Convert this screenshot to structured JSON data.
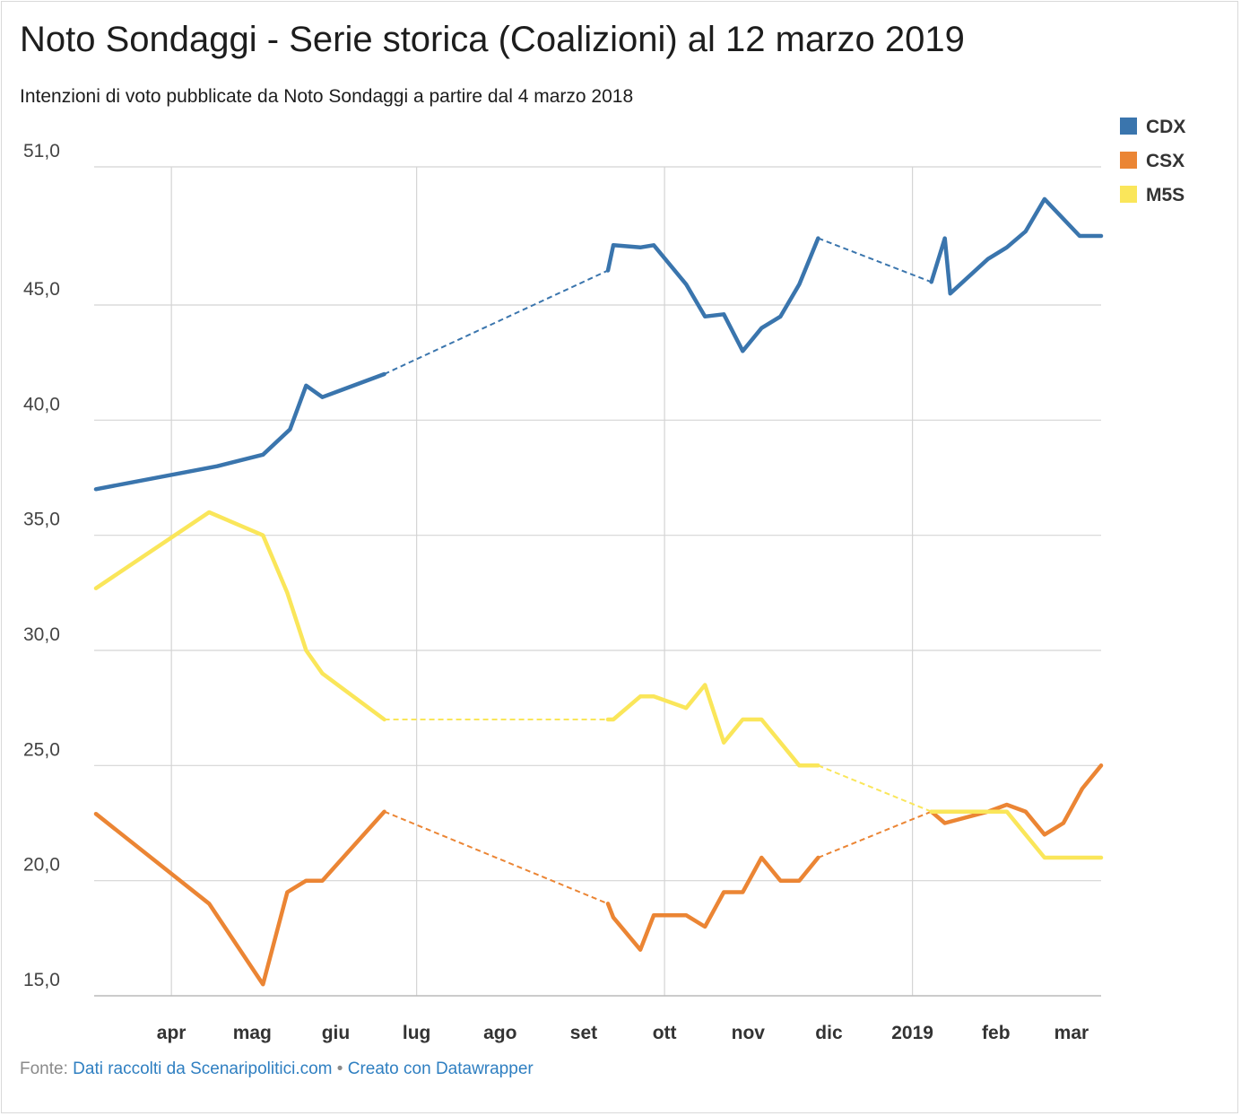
{
  "title": "Noto Sondaggi - Serie storica (Coalizioni) al 12 marzo 2019",
  "subtitle": "Intenzioni di voto pubblicate da Noto Sondaggi a partire dal 4 marzo 2018",
  "footer": {
    "prefix": "Fonte:",
    "source": "Dati raccolti da Scenaripolitici.com",
    "separator": "•",
    "credit": "Creato con Datawrapper"
  },
  "chart_data": {
    "type": "line",
    "title": "Noto Sondaggi - Serie storica (Coalizioni) al 12 marzo 2019",
    "ylim": [
      15,
      51
    ],
    "y_ticks": [
      15,
      20,
      25,
      30,
      35,
      40,
      45,
      51
    ],
    "y_tick_labels": [
      "15,0",
      "20,0",
      "25,0",
      "30,0",
      "35,0",
      "40,0",
      "45,0",
      "51,0"
    ],
    "x_range": [
      "2018-03-04",
      "2019-03-12"
    ],
    "x_ticks": [
      {
        "date": "2018-04-01",
        "label": "apr"
      },
      {
        "date": "2018-05-01",
        "label": "mag"
      },
      {
        "date": "2018-06-01",
        "label": "giu"
      },
      {
        "date": "2018-07-01",
        "label": "lug"
      },
      {
        "date": "2018-08-01",
        "label": "ago"
      },
      {
        "date": "2018-09-01",
        "label": "set"
      },
      {
        "date": "2018-10-01",
        "label": "ott"
      },
      {
        "date": "2018-11-01",
        "label": "nov"
      },
      {
        "date": "2018-12-01",
        "label": "dic"
      },
      {
        "date": "2019-01-01",
        "label": "2019"
      },
      {
        "date": "2019-02-01",
        "label": "feb"
      },
      {
        "date": "2019-03-01",
        "label": "mar"
      }
    ],
    "gridlines": true,
    "legend_position": "top-right",
    "gaps_style": "dashed",
    "series": [
      {
        "name": "CDX",
        "color": "#3a75ad",
        "segments": [
          [
            [
              "2018-03-04",
              37.0
            ],
            [
              "2018-04-18",
              38.0
            ],
            [
              "2018-05-05",
              38.5
            ],
            [
              "2018-05-15",
              39.6
            ],
            [
              "2018-05-21",
              41.5
            ],
            [
              "2018-05-27",
              41.0
            ],
            [
              "2018-06-19",
              42.0
            ]
          ],
          [
            [
              "2018-09-10",
              46.5
            ],
            [
              "2018-09-12",
              47.6
            ],
            [
              "2018-09-22",
              47.5
            ],
            [
              "2018-09-27",
              47.6
            ],
            [
              "2018-10-09",
              45.9
            ],
            [
              "2018-10-16",
              44.5
            ],
            [
              "2018-10-23",
              44.6
            ],
            [
              "2018-10-30",
              43.0
            ],
            [
              "2018-11-06",
              44.0
            ],
            [
              "2018-11-13",
              44.5
            ],
            [
              "2018-11-20",
              45.9
            ],
            [
              "2018-11-27",
              47.9
            ]
          ],
          [
            [
              "2019-01-08",
              46.0
            ],
            [
              "2019-01-13",
              47.9
            ],
            [
              "2019-01-15",
              45.5
            ],
            [
              "2019-01-29",
              47.0
            ],
            [
              "2019-02-05",
              47.5
            ],
            [
              "2019-02-12",
              48.2
            ],
            [
              "2019-02-19",
              49.6
            ],
            [
              "2019-03-04",
              48.0
            ],
            [
              "2019-03-12",
              48.0
            ]
          ]
        ]
      },
      {
        "name": "CSX",
        "color": "#eb8534",
        "segments": [
          [
            [
              "2018-03-04",
              22.9
            ],
            [
              "2018-04-15",
              19.0
            ],
            [
              "2018-05-05",
              15.5
            ],
            [
              "2018-05-14",
              19.5
            ],
            [
              "2018-05-21",
              20.0
            ],
            [
              "2018-05-27",
              20.0
            ],
            [
              "2018-06-19",
              23.0
            ]
          ],
          [
            [
              "2018-09-10",
              19.0
            ],
            [
              "2018-09-12",
              18.4
            ],
            [
              "2018-09-22",
              17.0
            ],
            [
              "2018-09-27",
              18.5
            ],
            [
              "2018-10-09",
              18.5
            ],
            [
              "2018-10-16",
              18.0
            ],
            [
              "2018-10-23",
              19.5
            ],
            [
              "2018-10-30",
              19.5
            ],
            [
              "2018-11-06",
              21.0
            ],
            [
              "2018-11-13",
              20.0
            ],
            [
              "2018-11-20",
              20.0
            ],
            [
              "2018-11-27",
              21.0
            ]
          ],
          [
            [
              "2019-01-08",
              23.0
            ],
            [
              "2019-01-13",
              22.5
            ],
            [
              "2019-01-29",
              23.0
            ],
            [
              "2019-02-05",
              23.3
            ],
            [
              "2019-02-12",
              23.0
            ],
            [
              "2019-02-19",
              22.0
            ],
            [
              "2019-02-26",
              22.5
            ],
            [
              "2019-03-05",
              24.0
            ],
            [
              "2019-03-12",
              25.0
            ]
          ]
        ]
      },
      {
        "name": "M5S",
        "color": "#fae65a",
        "segments": [
          [
            [
              "2018-03-04",
              32.7
            ],
            [
              "2018-04-15",
              36.0
            ],
            [
              "2018-05-05",
              35.0
            ],
            [
              "2018-05-14",
              32.5
            ],
            [
              "2018-05-21",
              30.0
            ],
            [
              "2018-05-27",
              29.0
            ],
            [
              "2018-06-19",
              27.0
            ]
          ],
          [
            [
              "2018-09-10",
              27.0
            ],
            [
              "2018-09-12",
              27.0
            ],
            [
              "2018-09-22",
              28.0
            ],
            [
              "2018-09-27",
              28.0
            ],
            [
              "2018-10-09",
              27.5
            ],
            [
              "2018-10-16",
              28.5
            ],
            [
              "2018-10-23",
              26.0
            ],
            [
              "2018-10-30",
              27.0
            ],
            [
              "2018-11-06",
              27.0
            ],
            [
              "2018-11-20",
              25.0
            ],
            [
              "2018-11-27",
              25.0
            ]
          ],
          [
            [
              "2019-01-08",
              23.0
            ],
            [
              "2019-01-13",
              23.0
            ],
            [
              "2019-02-05",
              23.0
            ],
            [
              "2019-02-19",
              21.0
            ],
            [
              "2019-03-12",
              21.0
            ]
          ]
        ]
      }
    ]
  }
}
